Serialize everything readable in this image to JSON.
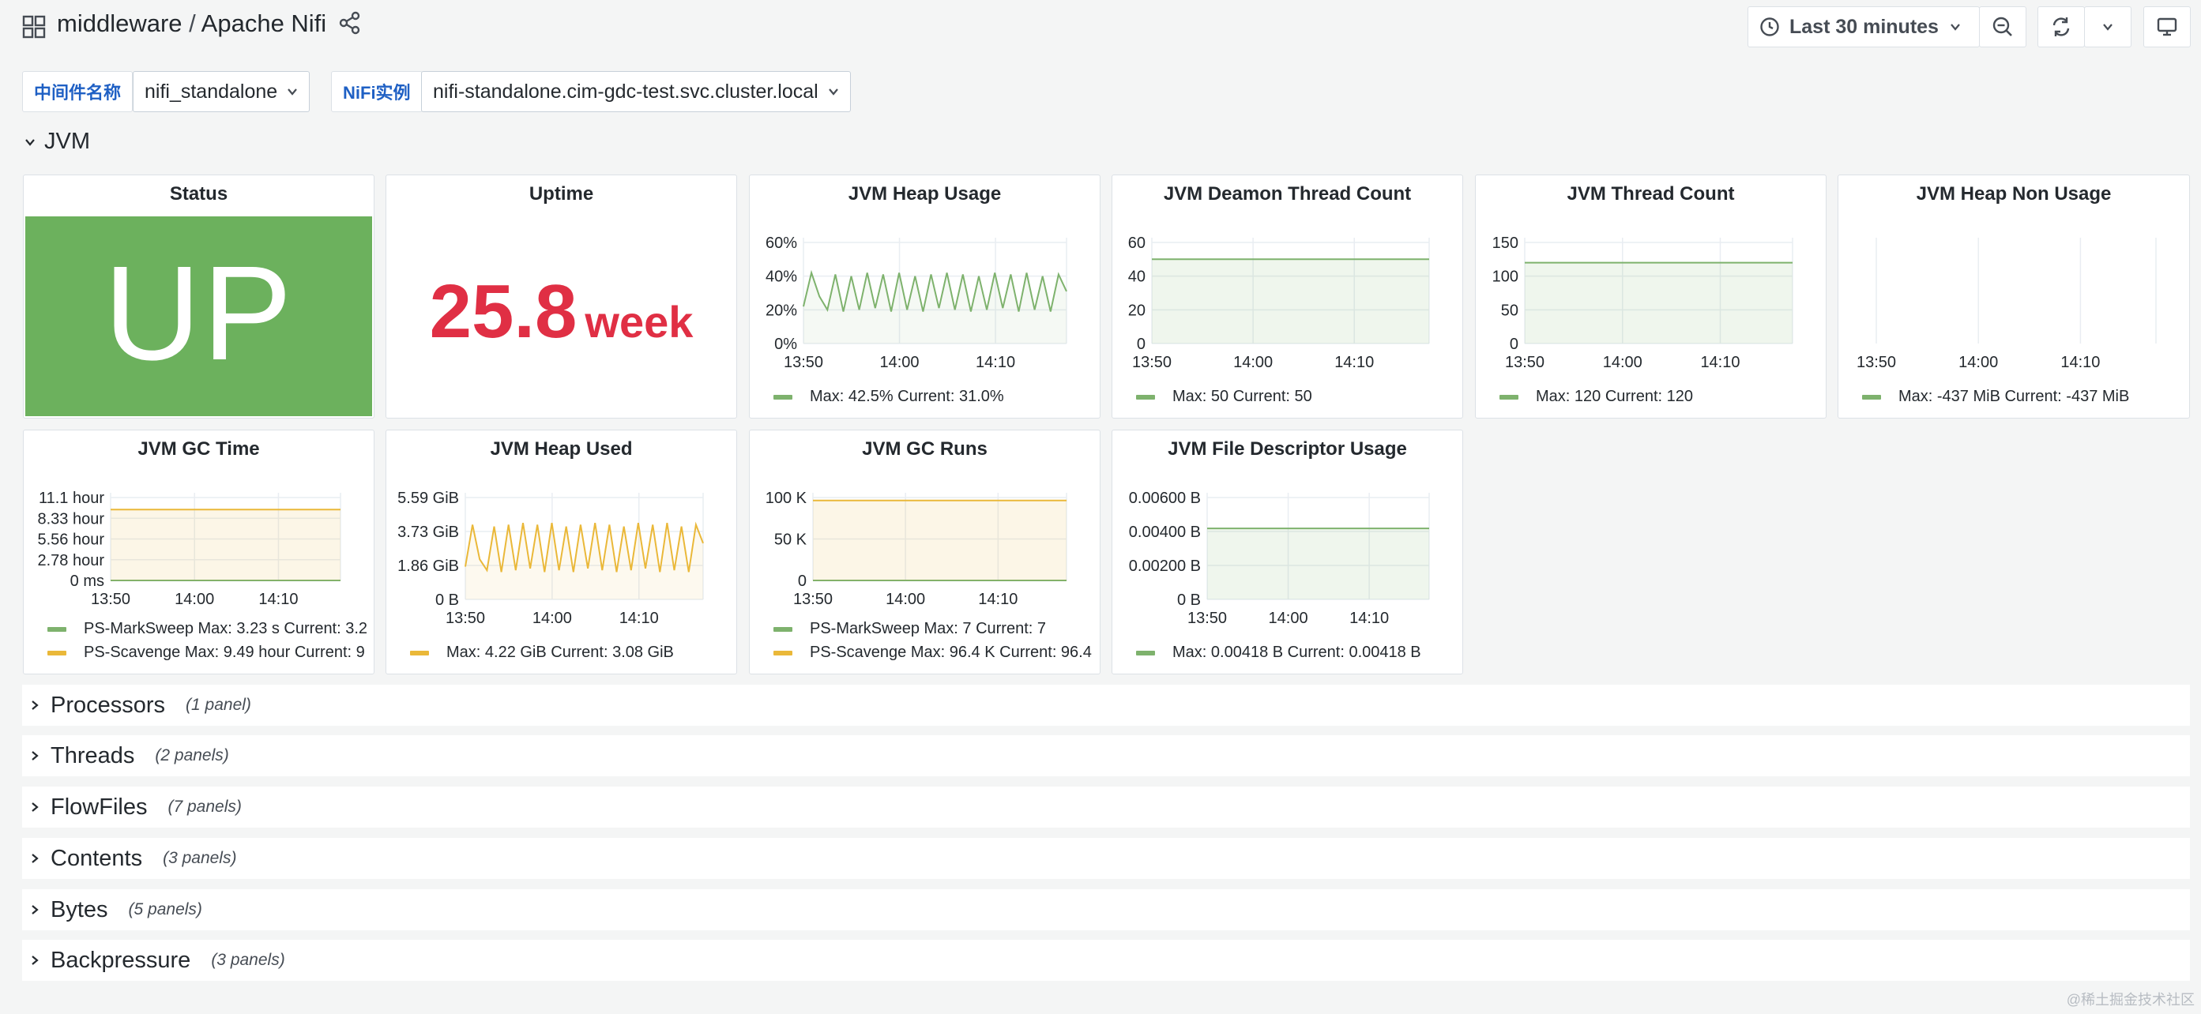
{
  "header": {
    "folder": "middleware",
    "separator": "/",
    "title": "Apache Nifi",
    "time_range": "Last 30 minutes"
  },
  "variables": [
    {
      "label": "中间件名称",
      "value": "nifi_standalone"
    },
    {
      "label": "NiFi实例",
      "value": "nifi-standalone.cim-gdc-test.svc.cluster.local"
    }
  ],
  "rows": {
    "jvm": "JVM",
    "collapsed": [
      {
        "title": "Processors",
        "count": "(1 panel)"
      },
      {
        "title": "Threads",
        "count": "(2 panels)"
      },
      {
        "title": "FlowFiles",
        "count": "(7 panels)"
      },
      {
        "title": "Contents",
        "count": "(3 panels)"
      },
      {
        "title": "Bytes",
        "count": "(5 panels)"
      },
      {
        "title": "Backpressure",
        "count": "(3 panels)"
      }
    ]
  },
  "panels": {
    "status": {
      "title": "Status",
      "value": "UP",
      "color": "#6cb15d"
    },
    "uptime": {
      "title": "Uptime",
      "value": "25.8",
      "unit": "week",
      "color": "#e02f44"
    }
  },
  "chart_data": [
    {
      "id": "heap_usage",
      "type": "line",
      "title": "JVM Heap Usage",
      "yticks": [
        "60%",
        "40%",
        "20%",
        "0%"
      ],
      "ylim": [
        0,
        60
      ],
      "xticks": [
        "13:50",
        "14:00",
        "14:10"
      ],
      "series": [
        {
          "name": "",
          "color": "#7eb26d",
          "values": [
            22,
            42,
            28,
            20,
            41,
            19,
            40,
            20,
            42,
            21,
            41,
            19,
            42,
            20,
            40,
            19,
            41,
            21,
            42,
            20,
            41,
            19,
            40,
            20,
            42,
            21,
            41,
            19,
            42,
            20,
            40,
            19,
            41,
            31
          ]
        }
      ],
      "legend": [
        {
          "color": "#7eb26d",
          "text": "Max: 42.5%  Current: 31.0%"
        }
      ]
    },
    {
      "id": "daemon_thread",
      "type": "area",
      "title": "JVM Deamon Thread Count",
      "yticks": [
        "60",
        "40",
        "20",
        "0"
      ],
      "ylim": [
        0,
        60
      ],
      "xticks": [
        "13:50",
        "14:00",
        "14:10"
      ],
      "series": [
        {
          "name": "",
          "color": "#7eb26d",
          "values": [
            50,
            50
          ]
        }
      ],
      "legend": [
        {
          "color": "#7eb26d",
          "text": "Max: 50  Current: 50"
        }
      ]
    },
    {
      "id": "thread_count",
      "type": "area",
      "title": "JVM Thread Count",
      "yticks": [
        "150",
        "100",
        "50",
        "0"
      ],
      "ylim": [
        0,
        150
      ],
      "xticks": [
        "13:50",
        "14:00",
        "14:10"
      ],
      "series": [
        {
          "name": "",
          "color": "#7eb26d",
          "values": [
            120,
            120
          ]
        }
      ],
      "legend": [
        {
          "color": "#7eb26d",
          "text": "Max: 120  Current: 120"
        }
      ]
    },
    {
      "id": "heap_non_usage",
      "type": "line",
      "title": "JVM Heap Non Usage",
      "yticks": [],
      "ylim": [
        0,
        1
      ],
      "xticks": [
        "13:50",
        "14:00",
        "14:10"
      ],
      "series": [],
      "legend": [
        {
          "color": "#7eb26d",
          "text": "Max: -437 MiB  Current: -437 MiB"
        }
      ]
    },
    {
      "id": "gc_time",
      "type": "area",
      "title": "JVM GC Time",
      "yticks": [
        "11.1 hour",
        "8.33 hour",
        "5.56 hour",
        "2.78 hour",
        "0 ms"
      ],
      "ylim": [
        0,
        11.1
      ],
      "xticks": [
        "13:50",
        "14:00",
        "14:10"
      ],
      "series": [
        {
          "name": "PS-MarkSweep",
          "color": "#7eb26d",
          "values": [
            0,
            0
          ]
        },
        {
          "name": "PS-Scavenge",
          "color": "#eab839",
          "values": [
            9.49,
            9.49
          ]
        }
      ],
      "legend": [
        {
          "color": "#7eb26d",
          "text": "PS-MarkSweep   Max: 3.23 s   Current: 3.2"
        },
        {
          "color": "#eab839",
          "text": "PS-Scavenge   Max: 9.49 hour   Current: 9"
        }
      ]
    },
    {
      "id": "heap_used",
      "type": "line",
      "title": "JVM Heap Used",
      "yticks": [
        "5.59 GiB",
        "3.73 GiB",
        "1.86 GiB",
        "0 B"
      ],
      "ylim": [
        0,
        5.59
      ],
      "xticks": [
        "13:50",
        "14:00",
        "14:10"
      ],
      "series": [
        {
          "name": "",
          "color": "#eab839",
          "values": [
            1.8,
            4.1,
            2.2,
            1.6,
            4.0,
            1.5,
            4.1,
            1.6,
            4.2,
            1.7,
            4.1,
            1.5,
            4.2,
            1.6,
            4.0,
            1.5,
            4.1,
            1.7,
            4.2,
            1.6,
            4.1,
            1.5,
            4.0,
            1.6,
            4.2,
            1.7,
            4.1,
            1.5,
            4.2,
            1.6,
            4.0,
            1.5,
            4.1,
            3.08
          ]
        }
      ],
      "legend": [
        {
          "color": "#eab839",
          "text": "Max: 4.22 GiB   Current: 3.08 GiB"
        }
      ]
    },
    {
      "id": "gc_runs",
      "type": "area",
      "title": "JVM GC Runs",
      "yticks": [
        "100 K",
        "50 K",
        "0"
      ],
      "ylim": [
        0,
        100
      ],
      "xticks": [
        "13:50",
        "14:00",
        "14:10"
      ],
      "series": [
        {
          "name": "PS-MarkSweep",
          "color": "#7eb26d",
          "values": [
            0.007,
            0.007
          ]
        },
        {
          "name": "PS-Scavenge",
          "color": "#eab839",
          "values": [
            96.4,
            96.4
          ]
        }
      ],
      "legend": [
        {
          "color": "#7eb26d",
          "text": "PS-MarkSweep   Max: 7   Current: 7"
        },
        {
          "color": "#eab839",
          "text": "PS-Scavenge   Max: 96.4 K   Current: 96.4"
        }
      ]
    },
    {
      "id": "fd_usage",
      "type": "area",
      "title": "JVM File Descriptor Usage",
      "yticks": [
        "0.00600 B",
        "0.00400 B",
        "0.00200 B",
        "0 B"
      ],
      "ylim": [
        0,
        0.006
      ],
      "xticks": [
        "13:50",
        "14:00",
        "14:10"
      ],
      "series": [
        {
          "name": "",
          "color": "#7eb26d",
          "values": [
            0.00418,
            0.00418
          ]
        }
      ],
      "legend": [
        {
          "color": "#7eb26d",
          "text": "Max: 0.00418 B   Current: 0.00418 B"
        }
      ]
    }
  ],
  "watermark": "@稀土掘金技术社区"
}
